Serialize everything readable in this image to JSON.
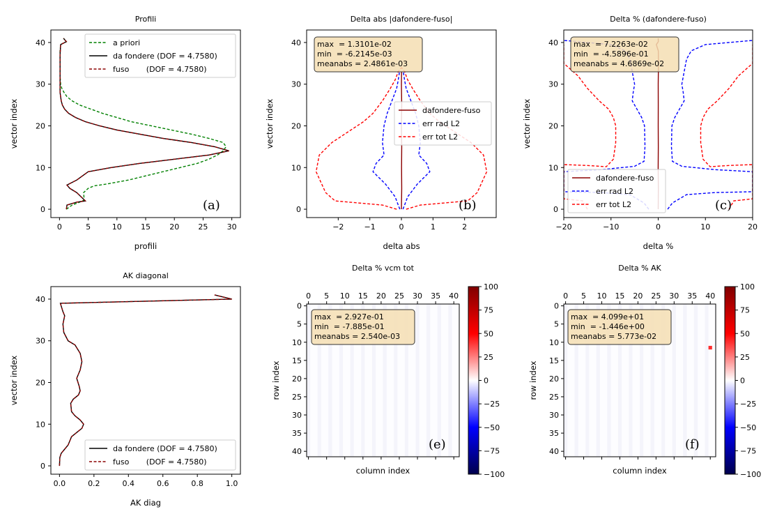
{
  "figure": {
    "colors": {
      "green": "#008000",
      "black": "#000000",
      "darkred": "#8b0000",
      "blue": "#0000ff",
      "red": "#ff0000",
      "statbox": "#f5deb3"
    }
  },
  "chart_data": [
    {
      "id": "a",
      "type": "line",
      "title": "Profili",
      "xlabel": "profili",
      "ylabel": "vector index",
      "xlim": [
        -1.5,
        31.5
      ],
      "ylim": [
        -2,
        43
      ],
      "xticks": [
        0,
        5,
        10,
        15,
        20,
        25,
        30
      ],
      "yticks": [
        0,
        10,
        20,
        30,
        40
      ],
      "legend_location": "top-right",
      "panel_label": "(a)",
      "series": [
        {
          "name": "a priori",
          "style": "dashed",
          "color": "#008000",
          "x": [
            1.2,
            2.2,
            3.5,
            4.3,
            4.2,
            5,
            6,
            8,
            10,
            12,
            15,
            18,
            21,
            24,
            26,
            27.5,
            28.5,
            29,
            28.5,
            26,
            23,
            19.5,
            16,
            12.5,
            10,
            7.5,
            5.5,
            3.5,
            2.2,
            1.3,
            0.8,
            0.4,
            0.2,
            0.1,
            0.1,
            0.1,
            0.2,
            1.2,
            0.7
          ],
          "y": [
            0,
            1,
            1.7,
            2.2,
            4,
            5,
            5.6,
            6,
            6.5,
            7,
            8,
            9,
            10,
            11,
            12,
            13,
            14,
            15,
            16,
            17,
            18,
            19,
            20,
            21,
            22,
            23,
            24,
            25,
            26,
            27,
            28,
            29,
            30,
            32,
            35,
            38,
            39.5,
            40.2,
            41
          ]
        },
        {
          "name": "da fondere (DOF = 4.7580)",
          "style": "solid",
          "color": "#000000",
          "x": [
            1.2,
            1.3,
            3,
            4.5,
            3,
            1.8,
            1.3,
            3,
            5,
            9,
            14,
            20,
            26,
            29.5,
            27,
            23,
            18,
            14,
            10,
            7,
            4.5,
            2.8,
            1.6,
            0.9,
            0.5,
            0.3,
            0.1,
            0.1,
            0.1,
            0.2,
            1.2,
            0.7
          ],
          "y": [
            0,
            1,
            1.7,
            2,
            4,
            5,
            5.8,
            7,
            9,
            10,
            11,
            12,
            13,
            14,
            15,
            16,
            17,
            18,
            19,
            20,
            21,
            22,
            23,
            24,
            25,
            26,
            28,
            32,
            37,
            39.5,
            40.2,
            41
          ]
        },
        {
          "name": "fuso       (DOF = 4.7580)",
          "style": "dashed",
          "color": "#8b0000",
          "x": [
            1.2,
            1.3,
            3,
            4.5,
            3,
            1.8,
            1.3,
            3,
            5,
            9,
            14,
            20,
            26,
            29.5,
            27,
            23,
            18,
            14,
            10,
            7,
            4.5,
            2.8,
            1.6,
            0.9,
            0.5,
            0.3,
            0.1,
            0.1,
            0.1,
            0.2,
            1.2,
            0.7
          ],
          "y": [
            0,
            1,
            1.7,
            2,
            4,
            5,
            5.8,
            7,
            9,
            10,
            11,
            12,
            13,
            14,
            15,
            16,
            17,
            18,
            19,
            20,
            21,
            22,
            23,
            24,
            25,
            26,
            28,
            32,
            37,
            39.5,
            40.2,
            41
          ]
        }
      ]
    },
    {
      "id": "b",
      "type": "line",
      "title": "Delta abs |dafondere-fuso|",
      "xlabel": "delta abs",
      "ylabel": "vector index",
      "xlim": [
        -3.0,
        3.0
      ],
      "ylim": [
        -2,
        43
      ],
      "xticks": [
        -2,
        -1,
        0,
        1,
        2
      ],
      "yticks": [
        0,
        10,
        20,
        30,
        40
      ],
      "legend_location": "center-right",
      "panel_label": "(b)",
      "stats": {
        "max": "max  = 1.3101e-02",
        "min": "min  = -6.2145e-03",
        "meanabs": "meanabs = 2.4861e-03"
      },
      "series": [
        {
          "name": "dafondere-fuso",
          "style": "solid",
          "color": "#8b0000",
          "x": [
            0,
            0.01,
            0.005,
            0.01,
            0.0,
            0.01,
            0,
            0.005
          ],
          "y": [
            0,
            5,
            10,
            15,
            20,
            25,
            30,
            33
          ]
        },
        {
          "name": "err rad L2",
          "style": "dashed",
          "color": "#0000ff",
          "x": [
            0.05,
            0.1,
            0.2,
            0.5,
            0.9,
            0.8,
            0.55,
            0.6,
            0.55,
            0.45,
            0.3,
            0.15,
            0.1,
            0.08,
            0.06
          ],
          "y": [
            0,
            1,
            3,
            6,
            9,
            11,
            13,
            16,
            20,
            23,
            26,
            29,
            31,
            32,
            33
          ],
          "mirror": true
        },
        {
          "name": "err tot L2",
          "style": "dashed",
          "color": "#ff0000",
          "x": [
            0.15,
            0.6,
            2.1,
            2.4,
            2.7,
            2.6,
            2.2,
            1.6,
            1.2,
            0.9,
            0.6,
            0.35,
            0.2,
            0.1,
            0.0
          ],
          "y": [
            0,
            1,
            2,
            4,
            9,
            13,
            16,
            19,
            21,
            23,
            26,
            29,
            31,
            33,
            34
          ],
          "mirror": true
        }
      ]
    },
    {
      "id": "c",
      "type": "line",
      "title": "Delta % (dafondere-fuso)",
      "xlabel": "delta %",
      "ylabel": "vector index",
      "xlim": [
        -20,
        20
      ],
      "ylim": [
        -2,
        43
      ],
      "xticks": [
        -20,
        -10,
        0,
        10,
        20
      ],
      "yticks": [
        0,
        10,
        20,
        30,
        40
      ],
      "legend_location": "lower-left",
      "panel_label": "(c)",
      "stats": {
        "max": "max  = 7.2263e-02",
        "min": "min  = -4.5896e-01",
        "meanabs": "meanabs = 4.6869e-02"
      },
      "series": [
        {
          "name": "dafondere-fuso",
          "style": "solid",
          "color": "#8b0000",
          "x": [
            0,
            0.03,
            -0.01,
            0.02,
            0,
            0.01,
            0,
            0.05,
            0.02,
            -0.4,
            0.02,
            0
          ],
          "y": [
            0,
            5,
            10,
            15,
            20,
            25,
            30,
            35,
            38,
            39.5,
            40.2,
            41
          ]
        },
        {
          "name": "err rad L2",
          "style": "dashed",
          "color": "#0000ff",
          "x": [
            2,
            3,
            6,
            12,
            20,
            20,
            12,
            5,
            3,
            2.8,
            2.9,
            3.5,
            4.5,
            5.5,
            5.3,
            5,
            5.5,
            6,
            7,
            10,
            20
          ],
          "y": [
            0,
            1.5,
            3.5,
            4,
            4.2,
            9,
            9.5,
            10.3,
            11.5,
            15,
            20,
            22,
            24,
            26,
            28,
            30,
            33,
            36,
            38,
            39.5,
            40.5
          ],
          "mirror": true
        },
        {
          "name": "err tot L2",
          "style": "dashed",
          "color": "#ff0000",
          "x": [
            15,
            16,
            20,
            20,
            15,
            11,
            9.5,
            9,
            9,
            9.5,
            10.5,
            12.5,
            15,
            17,
            20,
            20
          ],
          "y": [
            0,
            2,
            2.5,
            10.7,
            10.5,
            10.2,
            12,
            16,
            20,
            22,
            24,
            26,
            29,
            32,
            35,
            39.5
          ],
          "mirror": true
        }
      ]
    },
    {
      "id": "d",
      "type": "line",
      "title": "AK diagonal",
      "xlabel": "AK diag",
      "ylabel": "vector index",
      "xlim": [
        -0.05,
        1.05
      ],
      "ylim": [
        -2,
        43
      ],
      "xticks": [
        0.0,
        0.2,
        0.4,
        0.6,
        0.8,
        1.0
      ],
      "yticks": [
        0,
        10,
        20,
        30,
        40
      ],
      "legend_location": "lower-right",
      "series": [
        {
          "name": "da fondere (DOF = 4.7580)",
          "style": "solid",
          "color": "#000000",
          "x": [
            0,
            0.002,
            0.01,
            0.03,
            0.05,
            0.07,
            0.1,
            0.13,
            0.14,
            0.12,
            0.09,
            0.07,
            0.065,
            0.08,
            0.11,
            0.12,
            0.115,
            0.1,
            0.12,
            0.13,
            0.12,
            0.09,
            0.05,
            0.025,
            0.02,
            0.03,
            0.02,
            0.005,
            1.0,
            0.9
          ],
          "y": [
            0,
            2,
            3,
            4,
            5,
            7,
            8,
            9,
            10,
            11,
            12,
            13,
            15,
            16,
            17,
            18,
            19,
            21,
            23,
            25,
            27,
            29,
            30,
            32,
            34,
            36,
            37,
            39,
            40,
            41
          ]
        },
        {
          "name": "fuso       (DOF = 4.7580)",
          "style": "dashed",
          "color": "#8b0000",
          "x": [
            0,
            0.002,
            0.01,
            0.03,
            0.05,
            0.07,
            0.1,
            0.13,
            0.14,
            0.12,
            0.09,
            0.07,
            0.065,
            0.08,
            0.11,
            0.12,
            0.115,
            0.1,
            0.12,
            0.13,
            0.12,
            0.09,
            0.05,
            0.025,
            0.02,
            0.03,
            0.02,
            0.005,
            1.0,
            0.9
          ],
          "y": [
            0,
            2,
            3,
            4,
            5,
            7,
            8,
            9,
            10,
            11,
            12,
            13,
            15,
            16,
            17,
            18,
            19,
            21,
            23,
            25,
            27,
            29,
            30,
            32,
            34,
            36,
            37,
            39,
            40,
            41
          ]
        }
      ]
    },
    {
      "id": "e",
      "type": "heatmap",
      "title": "Delta % vcm tot",
      "xlabel": "column index",
      "ylabel": "row index",
      "xlim": [
        -0.5,
        41.5
      ],
      "ylim": [
        41.5,
        -0.5
      ],
      "xticks": [
        0,
        5,
        10,
        15,
        20,
        25,
        30,
        35,
        40
      ],
      "yticks": [
        0,
        5,
        10,
        15,
        20,
        25,
        30,
        35,
        40
      ],
      "panel_label": "(e)",
      "stats": {
        "max": "max  = 2.927e-01",
        "min": "min  = -7.885e-01",
        "meanabs": "meanabs = 2.540e-03"
      },
      "colorbar": {
        "min": -100,
        "max": 100,
        "ticks": [
          100,
          75,
          50,
          25,
          0,
          -25,
          -50,
          -75,
          -100
        ],
        "colormap": "seismic"
      },
      "hot_cells": []
    },
    {
      "id": "f",
      "type": "heatmap",
      "title": "Delta % AK",
      "xlabel": "column index",
      "ylabel": "row index",
      "xlim": [
        -0.5,
        41.5
      ],
      "ylim": [
        41.5,
        -0.5
      ],
      "xticks": [
        0,
        5,
        10,
        15,
        20,
        25,
        30,
        35,
        40
      ],
      "yticks": [
        0,
        5,
        10,
        15,
        20,
        25,
        30,
        35,
        40
      ],
      "panel_label": "(f)",
      "stats": {
        "max": "max  = 4.099e+01",
        "min": "min  = -1.446e+00",
        "meanabs": "meanabs = 5.773e-02"
      },
      "colorbar": {
        "min": -100,
        "max": 100,
        "ticks": [
          100,
          75,
          50,
          25,
          0,
          -25,
          -50,
          -75,
          -100
        ],
        "colormap": "seismic"
      },
      "hot_cells": [
        {
          "col": 40,
          "row": 11,
          "value": 40.99
        }
      ]
    }
  ]
}
